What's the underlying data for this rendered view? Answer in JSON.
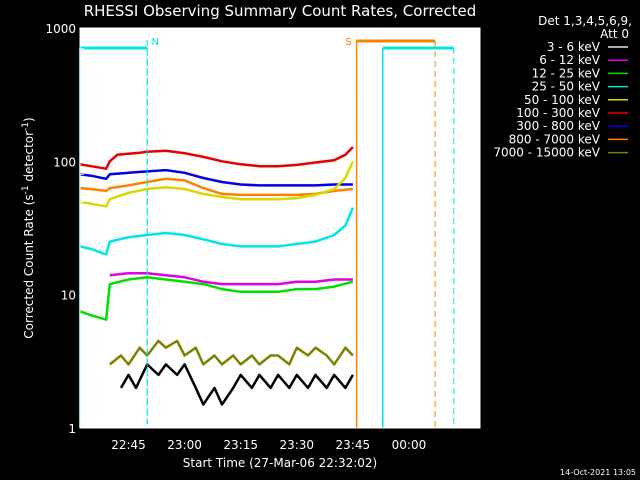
{
  "chart_data": {
    "type": "line",
    "title": "RHESSI Observing Summary Count Rates, Corrected",
    "xlabel": "Start Time (27-Mar-06 22:32:02)",
    "ylabel_main": "Corrected Count Rate (s",
    "ylabel_sup1": "-1",
    "ylabel_mid": " detector",
    "ylabel_sup2": "-1",
    "ylabel_end": ")",
    "y_scale": "log",
    "ylim": [
      1,
      1000
    ],
    "xlim": [
      "22:32:02",
      "00:19:00"
    ],
    "x_ticks": [
      "22:45",
      "23:00",
      "23:15",
      "23:30",
      "23:45",
      "00:00"
    ],
    "y_ticks": [
      {
        "value": 1,
        "label": "1"
      },
      {
        "value": 10,
        "label": "10"
      },
      {
        "value": 100,
        "label": "100"
      },
      {
        "value": 1000,
        "label": "1000"
      }
    ],
    "legend": {
      "position": "right",
      "header": [
        "Det 1,3,4,5,6,9,",
        "Att 0"
      ],
      "entries": [
        {
          "name": "3 - 6 keV",
          "color": "#000000"
        },
        {
          "name": "6 - 12 keV",
          "color": "#e000e0"
        },
        {
          "name": "12 - 25 keV",
          "color": "#00e000"
        },
        {
          "name": "25 - 50 keV",
          "color": "#00e6e6"
        },
        {
          "name": "50 - 100 keV",
          "color": "#d8d800"
        },
        {
          "name": "100 - 300 keV",
          "color": "#e60000"
        },
        {
          "name": "300 - 800 keV",
          "color": "#0000e6"
        },
        {
          "name": "800 - 7000 keV",
          "color": "#ff8000"
        },
        {
          "name": "7000 - 15000 keV",
          "color": "#808000"
        }
      ]
    },
    "annotations": [
      {
        "label": "N",
        "time": "22:50",
        "color": "#00e6e6"
      },
      {
        "label": "S",
        "time": "23:46",
        "color": "#ff8000"
      }
    ],
    "state_bars": [
      {
        "name": "night",
        "color": "#00e6e6",
        "segments": [
          [
            "22:32",
            "22:50"
          ],
          [
            "23:53",
            "00:12"
          ]
        ]
      },
      {
        "name": "saa",
        "color": "#ff8000",
        "segments": [
          [
            "23:46",
            "00:07"
          ]
        ]
      }
    ],
    "series": [
      {
        "name": "100 - 300 keV",
        "color": "#e60000",
        "x": [
          "22:32",
          "22:35",
          "22:39",
          "22:40",
          "22:42",
          "22:45",
          "22:48",
          "22:50",
          "22:55",
          "23:00",
          "23:05",
          "23:10",
          "23:15",
          "23:20",
          "23:25",
          "23:30",
          "23:35",
          "23:40",
          "23:43",
          "23:45"
        ],
        "y": [
          95,
          92,
          88,
          100,
          112,
          114,
          116,
          118,
          120,
          115,
          108,
          100,
          95,
          92,
          92,
          94,
          98,
          102,
          112,
          128
        ]
      },
      {
        "name": "300 - 800 keV",
        "color": "#0000e6",
        "x": [
          "22:32",
          "22:35",
          "22:39",
          "22:40",
          "22:45",
          "22:50",
          "22:55",
          "23:00",
          "23:05",
          "23:10",
          "23:15",
          "23:20",
          "23:25",
          "23:30",
          "23:35",
          "23:40",
          "23:45"
        ],
        "y": [
          80,
          78,
          74,
          80,
          82,
          84,
          86,
          82,
          75,
          70,
          67,
          66,
          66,
          66,
          66,
          67,
          67
        ]
      },
      {
        "name": "800 - 7000 keV",
        "color": "#ff8000",
        "x": [
          "22:32",
          "22:35",
          "22:39",
          "22:40",
          "22:45",
          "22:50",
          "22:55",
          "23:00",
          "23:05",
          "23:10",
          "23:15",
          "23:20",
          "23:25",
          "23:30",
          "23:35",
          "23:40",
          "23:45"
        ],
        "y": [
          63,
          62,
          60,
          63,
          66,
          70,
          74,
          72,
          63,
          57,
          56,
          56,
          56,
          56,
          57,
          60,
          62
        ]
      },
      {
        "name": "50 - 100 keV",
        "color": "#d8d800",
        "x": [
          "22:32",
          "22:35",
          "22:39",
          "22:40",
          "22:45",
          "22:50",
          "22:55",
          "23:00",
          "23:05",
          "23:10",
          "23:15",
          "23:20",
          "23:25",
          "23:30",
          "23:35",
          "23:40",
          "23:43",
          "23:45"
        ],
        "y": [
          50,
          48,
          46,
          52,
          58,
          62,
          64,
          62,
          57,
          54,
          52,
          52,
          52,
          53,
          56,
          62,
          75,
          100
        ]
      },
      {
        "name": "25 - 50 keV",
        "color": "#00e6e6",
        "x": [
          "22:32",
          "22:35",
          "22:39",
          "22:40",
          "22:45",
          "22:50",
          "22:55",
          "23:00",
          "23:05",
          "23:10",
          "23:15",
          "23:20",
          "23:25",
          "23:30",
          "23:35",
          "23:40",
          "23:43",
          "23:45"
        ],
        "y": [
          23,
          22,
          20,
          25,
          27,
          28,
          29,
          28,
          26,
          24,
          23,
          23,
          23,
          24,
          25,
          28,
          33,
          45
        ]
      },
      {
        "name": "6 - 12 keV",
        "color": "#e000e0",
        "x": [
          "22:40",
          "22:45",
          "22:50",
          "22:55",
          "23:00",
          "23:05",
          "23:10",
          "23:15",
          "23:20",
          "23:25",
          "23:30",
          "23:35",
          "23:40",
          "23:45"
        ],
        "y": [
          14,
          14.5,
          14.5,
          14,
          13.5,
          12.5,
          12,
          12,
          12,
          12,
          12.5,
          12.5,
          13,
          13
        ]
      },
      {
        "name": "12 - 25 keV",
        "color": "#00e000",
        "x": [
          "22:32",
          "22:35",
          "22:39",
          "22:40",
          "22:45",
          "22:50",
          "22:55",
          "23:00",
          "23:05",
          "23:10",
          "23:15",
          "23:20",
          "23:25",
          "23:30",
          "23:35",
          "23:40",
          "23:45"
        ],
        "y": [
          7.5,
          7,
          6.5,
          12,
          13,
          13.5,
          13,
          12.5,
          12,
          11,
          10.5,
          10.5,
          10.5,
          11,
          11,
          11.5,
          12.5
        ]
      },
      {
        "name": "7000 - 15000 keV",
        "color": "#808000",
        "x": [
          "22:40",
          "22:43",
          "22:45",
          "22:48",
          "22:50",
          "22:53",
          "22:55",
          "22:58",
          "23:00",
          "23:03",
          "23:05",
          "23:08",
          "23:10",
          "23:13",
          "23:15",
          "23:18",
          "23:20",
          "23:23",
          "23:25",
          "23:28",
          "23:30",
          "23:33",
          "23:35",
          "23:38",
          "23:40",
          "23:43",
          "23:45"
        ],
        "y": [
          3,
          3.5,
          3,
          4,
          3.5,
          4.5,
          4,
          4.5,
          3.5,
          4,
          3,
          3.5,
          3,
          3.5,
          3,
          3.5,
          3,
          3.5,
          3.5,
          3,
          4,
          3.5,
          4,
          3.5,
          3,
          4,
          3.5
        ]
      },
      {
        "name": "3 - 6 keV",
        "color": "#000000",
        "x": [
          "22:43",
          "22:45",
          "22:47",
          "22:50",
          "22:53",
          "22:55",
          "22:58",
          "23:00",
          "23:03",
          "23:05",
          "23:08",
          "23:10",
          "23:13",
          "23:15",
          "23:18",
          "23:20",
          "23:23",
          "23:25",
          "23:28",
          "23:30",
          "23:33",
          "23:35",
          "23:38",
          "23:40",
          "23:43",
          "23:45"
        ],
        "y": [
          2,
          2.5,
          2,
          3,
          2.5,
          3,
          2.5,
          3,
          2,
          1.5,
          2,
          1.5,
          2,
          2.5,
          2,
          2.5,
          2,
          2.5,
          2,
          2.5,
          2,
          2.5,
          2,
          2.5,
          2,
          2.5
        ]
      }
    ]
  },
  "footer": {
    "date": "14-Oct-2021 13:05"
  }
}
